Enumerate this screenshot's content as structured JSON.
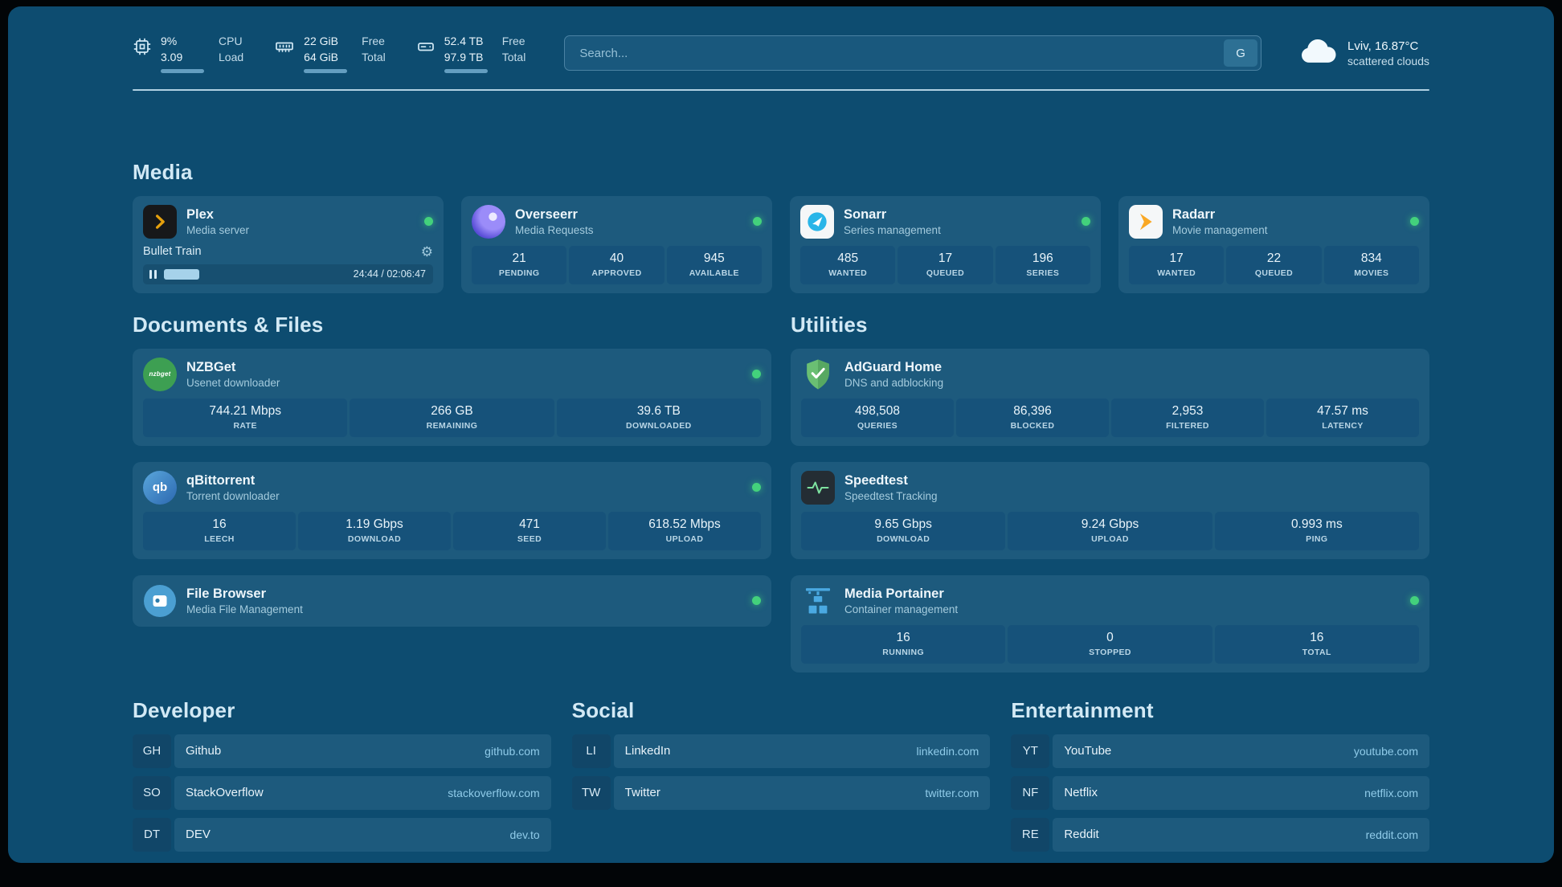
{
  "colors": {
    "background": "#0d4c70",
    "card": "#1d5a7d",
    "stat_box": "#16527a",
    "status_online": "#43d17c",
    "section_title": "#d2e9f5"
  },
  "topbar": {
    "resources": [
      {
        "icon": "cpu-icon",
        "value_top": "9%",
        "value_bottom": "3.09",
        "label_top": "CPU",
        "label_bottom": "Load",
        "progress_percent": 91
      },
      {
        "icon": "memory-icon",
        "value_top": "22 GiB",
        "value_bottom": "64 GiB",
        "label_top": "Free",
        "label_bottom": "Total",
        "progress_percent": 70
      },
      {
        "icon": "disk-icon",
        "value_top": "52.4 TB",
        "value_bottom": "97.9 TB",
        "label_top": "Free",
        "label_bottom": "Total",
        "progress_percent": 55
      }
    ],
    "search": {
      "placeholder": "Search...",
      "button_label": "G"
    },
    "weather": {
      "icon": "cloud-icon",
      "location": "Lviv, 16.87°C",
      "condition": "scattered clouds"
    }
  },
  "sections": {
    "media": {
      "title": "Media",
      "plex": {
        "name": "Plex",
        "subtitle": "Media server",
        "status": "online",
        "now_playing": "Bullet Train",
        "time": "24:44 / 02:06:47",
        "progress_percent": 19.5
      },
      "overseerr": {
        "name": "Overseerr",
        "subtitle": "Media Requests",
        "status": "online",
        "stats": [
          {
            "value": "21",
            "label": "PENDING"
          },
          {
            "value": "40",
            "label": "APPROVED"
          },
          {
            "value": "945",
            "label": "AVAILABLE"
          }
        ]
      },
      "sonarr": {
        "name": "Sonarr",
        "subtitle": "Series management",
        "status": "online",
        "stats": [
          {
            "value": "485",
            "label": "WANTED"
          },
          {
            "value": "17",
            "label": "QUEUED"
          },
          {
            "value": "196",
            "label": "SERIES"
          }
        ]
      },
      "radarr": {
        "name": "Radarr",
        "subtitle": "Movie management",
        "status": "online",
        "stats": [
          {
            "value": "17",
            "label": "WANTED"
          },
          {
            "value": "22",
            "label": "QUEUED"
          },
          {
            "value": "834",
            "label": "MOVIES"
          }
        ]
      }
    },
    "documents": {
      "title": "Documents & Files",
      "nzbget": {
        "name": "NZBGet",
        "subtitle": "Usenet downloader",
        "status": "online",
        "stats": [
          {
            "value": "744.21 Mbps",
            "label": "RATE"
          },
          {
            "value": "266 GB",
            "label": "REMAINING"
          },
          {
            "value": "39.6 TB",
            "label": "DOWNLOADED"
          }
        ]
      },
      "qbittorrent": {
        "name": "qBittorrent",
        "subtitle": "Torrent downloader",
        "status": "online",
        "stats": [
          {
            "value": "16",
            "label": "LEECH"
          },
          {
            "value": "1.19 Gbps",
            "label": "DOWNLOAD"
          },
          {
            "value": "471",
            "label": "SEED"
          },
          {
            "value": "618.52 Mbps",
            "label": "UPLOAD"
          }
        ]
      },
      "filebrowser": {
        "name": "File Browser",
        "subtitle": "Media File Management",
        "status": "online"
      }
    },
    "utilities": {
      "title": "Utilities",
      "adguard": {
        "name": "AdGuard Home",
        "subtitle": "DNS and adblocking",
        "stats": [
          {
            "value": "498,508",
            "label": "QUERIES"
          },
          {
            "value": "86,396",
            "label": "BLOCKED"
          },
          {
            "value": "2,953",
            "label": "FILTERED"
          },
          {
            "value": "47.57 ms",
            "label": "LATENCY"
          }
        ]
      },
      "speedtest": {
        "name": "Speedtest",
        "subtitle": "Speedtest Tracking",
        "stats": [
          {
            "value": "9.65 Gbps",
            "label": "DOWNLOAD"
          },
          {
            "value": "9.24 Gbps",
            "label": "UPLOAD"
          },
          {
            "value": "0.993 ms",
            "label": "PING"
          }
        ]
      },
      "portainer": {
        "name": "Media Portainer",
        "subtitle": "Container management",
        "status": "online",
        "stats": [
          {
            "value": "16",
            "label": "RUNNING"
          },
          {
            "value": "0",
            "label": "STOPPED"
          },
          {
            "value": "16",
            "label": "TOTAL"
          }
        ]
      }
    }
  },
  "bookmarks": {
    "developer": {
      "title": "Developer",
      "items": [
        {
          "abbr": "GH",
          "name": "Github",
          "domain": "github.com"
        },
        {
          "abbr": "SO",
          "name": "StackOverflow",
          "domain": "stackoverflow.com"
        },
        {
          "abbr": "DT",
          "name": "DEV",
          "domain": "dev.to"
        }
      ]
    },
    "social": {
      "title": "Social",
      "items": [
        {
          "abbr": "LI",
          "name": "LinkedIn",
          "domain": "linkedin.com"
        },
        {
          "abbr": "TW",
          "name": "Twitter",
          "domain": "twitter.com"
        }
      ]
    },
    "entertainment": {
      "title": "Entertainment",
      "items": [
        {
          "abbr": "YT",
          "name": "YouTube",
          "domain": "youtube.com"
        },
        {
          "abbr": "NF",
          "name": "Netflix",
          "domain": "netflix.com"
        },
        {
          "abbr": "RE",
          "name": "Reddit",
          "domain": "reddit.com"
        }
      ]
    }
  }
}
